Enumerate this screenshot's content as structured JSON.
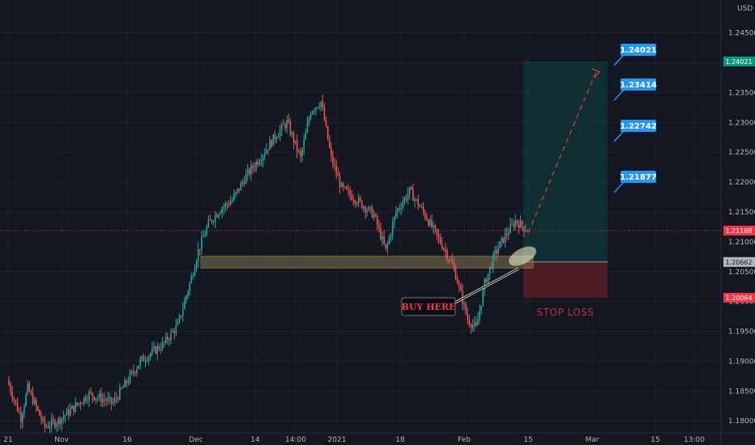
{
  "currency_label": "USD",
  "chart_data": {
    "type": "candlestick",
    "y_axis": {
      "range": [
        1.178,
        1.2505
      ],
      "ticks": [
        "1.24500",
        "1.24000",
        "1.23500",
        "1.23000",
        "1.22500",
        "1.22000",
        "1.21500",
        "1.21000",
        "1.20500",
        "1.20000",
        "1.19500",
        "1.19000",
        "1.18500",
        "1.18000"
      ],
      "grid": true
    },
    "x_axis": {
      "ticks": [
        "21",
        "Nov",
        "16",
        "Dec",
        "14",
        "14:00",
        "2021",
        "18",
        "Feb",
        "15",
        "Mar",
        "15",
        "13:00"
      ]
    },
    "candles": {
      "count": 245,
      "price_low": 1.1785,
      "price_high": 1.2352
    },
    "price_tags": {
      "current": {
        "value": "1.21188",
        "color": "#f23645"
      },
      "target": {
        "value": "1.24021",
        "color": "#089981"
      },
      "entry": {
        "value": "1.20662",
        "color": "#b2b5be"
      },
      "stop": {
        "value": "1.20064",
        "color": "#f23645"
      }
    },
    "annotations": {
      "support_zone": {
        "from": 1.2056,
        "to": 1.2076,
        "color": "#f5a623"
      },
      "targets": [
        "1.24021",
        "1.23414",
        "1.22742",
        "1.21877"
      ],
      "buy_label": "BUY HERE",
      "stop_label": "STOP LOSS",
      "profit_zone": {
        "from": 1.20662,
        "to": 1.24021
      },
      "loss_zone": {
        "from": 1.20064,
        "to": 1.20662
      }
    },
    "colors": {
      "up": "#26a69a",
      "down": "#ef5350",
      "background": "#131722",
      "callout": "#2196f3"
    }
  }
}
